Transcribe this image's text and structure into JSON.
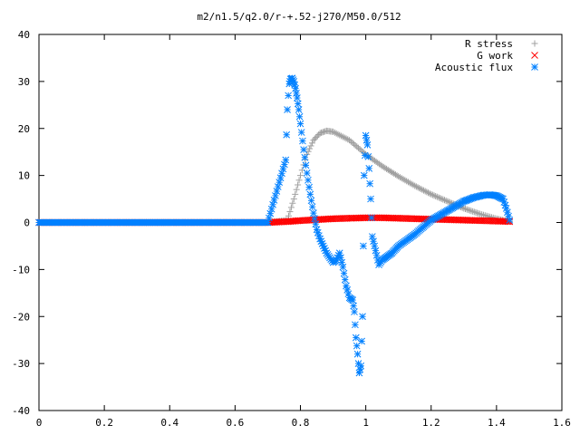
{
  "chart_data": {
    "type": "scatter",
    "title": "m2/n1.5/q2.0/r-+.52-j270/M50.0/512",
    "xlabel": "",
    "ylabel": "",
    "xlim": [
      0,
      1.6
    ],
    "ylim": [
      -40,
      40
    ],
    "xticks": [
      "0",
      "0.2",
      "0.4",
      "0.6",
      "0.8",
      "1",
      "1.2",
      "1.4",
      "1.6"
    ],
    "yticks": [
      "40",
      "30",
      "20",
      "10",
      "0",
      "-10",
      "-20",
      "-30",
      "-40"
    ],
    "grid": false,
    "legend_position": "top-right",
    "series": [
      {
        "name": "R stress",
        "marker": "+",
        "color": "#a0a0a0",
        "x": [
          0.0,
          0.1,
          0.2,
          0.3,
          0.4,
          0.5,
          0.6,
          0.7,
          0.76,
          0.78,
          0.8,
          0.82,
          0.84,
          0.86,
          0.88,
          0.9,
          0.95,
          1.0,
          1.05,
          1.1,
          1.15,
          1.2,
          1.25,
          1.3,
          1.35,
          1.4,
          1.44
        ],
        "y": [
          0,
          0,
          0,
          0,
          0,
          0,
          0,
          0,
          0.5,
          5.0,
          10.0,
          14.5,
          17.5,
          19.0,
          19.5,
          19.3,
          17.5,
          14.5,
          12.0,
          9.8,
          7.8,
          6.0,
          4.5,
          3.0,
          1.8,
          0.8,
          0.2
        ]
      },
      {
        "name": "G work",
        "marker": "x",
        "color": "#ff0000",
        "x": [
          0.0,
          0.1,
          0.2,
          0.3,
          0.4,
          0.5,
          0.6,
          0.7,
          0.76,
          0.8,
          0.85,
          0.9,
          0.95,
          1.0,
          1.05,
          1.1,
          1.15,
          1.2,
          1.25,
          1.3,
          1.35,
          1.4,
          1.44
        ],
        "y": [
          0,
          0,
          0,
          0,
          0,
          0,
          0,
          0,
          0.2,
          0.4,
          0.6,
          0.8,
          0.9,
          1.0,
          1.0,
          0.9,
          0.8,
          0.7,
          0.6,
          0.5,
          0.4,
          0.3,
          0.2
        ]
      },
      {
        "name": "Acoustic flux",
        "marker": "*",
        "color": "#0080ff",
        "x": [
          0.0,
          0.1,
          0.2,
          0.3,
          0.4,
          0.5,
          0.6,
          0.7,
          0.755,
          0.76,
          0.763,
          0.766,
          0.77,
          0.775,
          0.78,
          0.785,
          0.79,
          0.795,
          0.8,
          0.81,
          0.82,
          0.83,
          0.84,
          0.85,
          0.86,
          0.87,
          0.88,
          0.89,
          0.9,
          0.91,
          0.92,
          0.93,
          0.94,
          0.95,
          0.96,
          0.965,
          0.97,
          0.975,
          0.98,
          0.985,
          0.99,
          0.995,
          1.0,
          1.005,
          1.01,
          1.015,
          1.02,
          1.03,
          1.04,
          1.05,
          1.06,
          1.08,
          1.1,
          1.15,
          1.2,
          1.25,
          1.3,
          1.33,
          1.36,
          1.38,
          1.4,
          1.42,
          1.43,
          1.44
        ],
        "y": [
          0,
          0,
          0,
          0,
          0,
          0,
          0,
          0,
          13.3,
          24.0,
          27.0,
          29.5,
          30.5,
          30.7,
          30.0,
          28.5,
          26.5,
          24.0,
          21.0,
          15.5,
          10.5,
          6.0,
          2.0,
          -1.5,
          -3.5,
          -5.0,
          -6.5,
          -7.5,
          -8.5,
          -8.0,
          -6.5,
          -9.5,
          -13.5,
          -16.0,
          -16.5,
          -19.0,
          -24.5,
          -28.0,
          -32.0,
          -30.5,
          -20.0,
          10.0,
          18.5,
          16.5,
          11.5,
          5.0,
          -3.0,
          -6.0,
          -9.0,
          -8.0,
          -7.5,
          -6.5,
          -5.0,
          -2.5,
          0.5,
          2.5,
          4.5,
          5.3,
          5.8,
          5.9,
          5.7,
          5.0,
          3.0,
          0.5
        ]
      }
    ]
  }
}
